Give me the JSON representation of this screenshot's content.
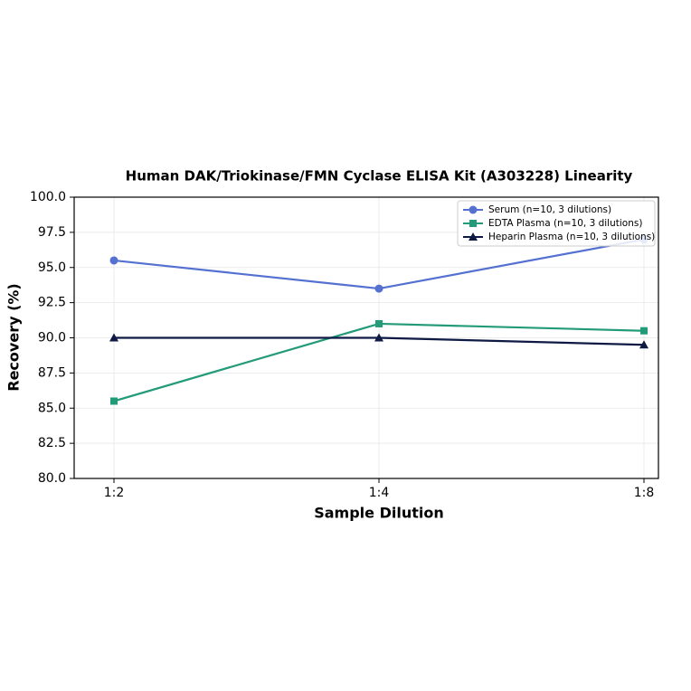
{
  "chart_data": {
    "type": "line",
    "title": "Human DAK/Triokinase/FMN Cyclase ELISA Kit (A303228) Linearity",
    "x_label": "Sample Dilution",
    "y_label": "Recovery (%)",
    "categories": [
      "1:2",
      "1:4",
      "1:8"
    ],
    "series": [
      {
        "name": "Serum (n=10, 3 dilutions)",
        "color": "#5470d1",
        "marker": "circle",
        "values": [
          95.5,
          93.5,
          97.0
        ]
      },
      {
        "name": "EDTA Plasma (n=10, 3 dilutions)",
        "color": "#239b79",
        "marker": "square",
        "values": [
          85.5,
          91.0,
          90.5
        ]
      },
      {
        "name": "Heparin Plasma (n=10, 3 dilutions)",
        "color": "#0e1a44",
        "marker": "triangle",
        "values": [
          90.0,
          90.0,
          89.5
        ]
      }
    ],
    "ylim": [
      80,
      100
    ],
    "yticks": [
      {
        "value": 80,
        "label": "80.0"
      },
      {
        "value": 82.5,
        "label": "82.5"
      },
      {
        "value": 85,
        "label": "85.0"
      },
      {
        "value": 87.5,
        "label": "87.5"
      },
      {
        "value": 90,
        "label": "90.0"
      },
      {
        "value": 92.5,
        "label": "92.5"
      },
      {
        "value": 95,
        "label": "95.0"
      },
      {
        "value": 97.5,
        "label": "97.5"
      },
      {
        "value": 100,
        "label": "100.0"
      }
    ],
    "grid": true,
    "legend": "upper right"
  }
}
